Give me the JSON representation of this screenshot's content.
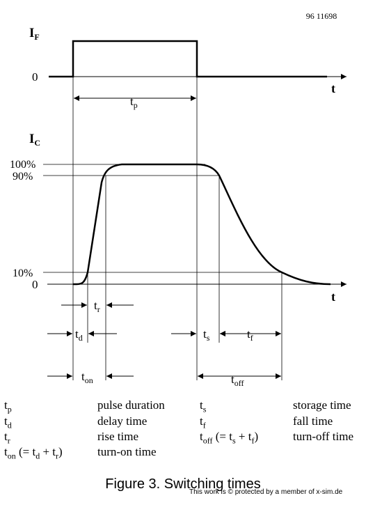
{
  "figure_id": "96 11698",
  "if_label": "I",
  "if_sub": "F",
  "ic_label": "I",
  "ic_sub": "C",
  "axis_t": "t",
  "y_zero": "0",
  "pct_100": "100%",
  "pct_90": "90%",
  "pct_10": "10%",
  "tp_base": "t",
  "tp_sub": "p",
  "tr_base": "t",
  "tr_sub": "r",
  "td_base": "t",
  "td_sub": "d",
  "ts_base": "t",
  "ts_sub": "s",
  "tf_base": "t",
  "tf_sub": "f",
  "ton_base": "t",
  "ton_sub": "on",
  "toff_base": "t",
  "toff_sub": "off",
  "legend": {
    "tp_sym": "t",
    "tp_sub": "p",
    "tp_desc": "pulse duration",
    "td_sym": "t",
    "td_sub": "d",
    "td_desc": "delay time",
    "tr_sym": "t",
    "tr_sub": "r",
    "tr_desc": "rise time",
    "ton_sym": "t",
    "ton_sub": "on",
    "ton_formula": " (= t",
    "ton_f_sub1": "d",
    "ton_f_mid": " + t",
    "ton_f_sub2": "r",
    "ton_f_end": ")",
    "ton_desc": "turn-on time",
    "ts_sym": "t",
    "ts_sub": "s",
    "ts_desc": "storage time",
    "tf_sym": "t",
    "tf_sub": "f",
    "tf_desc": "fall time",
    "toff_sym": "t",
    "toff_sub": "off",
    "toff_formula": " (= t",
    "toff_f_sub1": "s",
    "toff_f_mid": " + t",
    "toff_f_sub2": "f",
    "toff_f_end": ")",
    "toff_desc": "turn-off time"
  },
  "caption": "Figure 3.  Switching times",
  "watermark": "This work is © protected by a member of x-sim.de"
}
